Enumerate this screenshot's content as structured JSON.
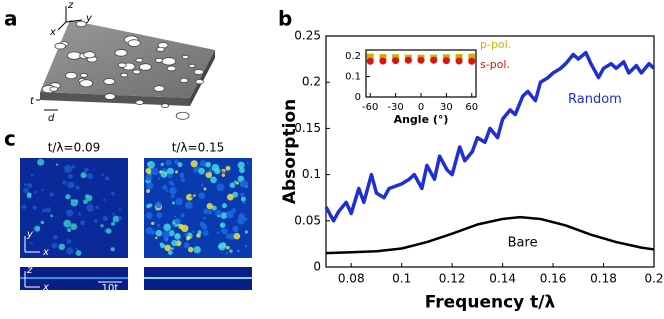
{
  "panels": {
    "a": "a",
    "b": "b",
    "c": "c"
  },
  "panel_a": {
    "axis_z": "z",
    "axis_y": "y",
    "axis_x": "x",
    "thickness": "t",
    "diameter": "d"
  },
  "panel_c": {
    "title_left": "t/λ=0.09",
    "title_right": "t/λ=0.15",
    "axis_y": "y",
    "axis_x": "x",
    "axis_z": "z",
    "axis_x2": "x",
    "scale": "10t"
  },
  "chart_data": [
    {
      "type": "line",
      "xlabel": "Frequency t/λ",
      "ylabel": "Absorption",
      "xlim": [
        0.07,
        0.2
      ],
      "ylim": [
        0,
        0.25
      ],
      "xticks": [
        0.08,
        0.1,
        0.12,
        0.14,
        0.16,
        0.18,
        0.2
      ],
      "yticks": [
        0,
        0.05,
        0.1,
        0.15,
        0.2,
        0.25
      ],
      "series": [
        {
          "name": "Random",
          "color": "#1f2fd6",
          "x": [
            0.07,
            0.073,
            0.075,
            0.078,
            0.08,
            0.083,
            0.085,
            0.088,
            0.09,
            0.093,
            0.095,
            0.1,
            0.103,
            0.105,
            0.108,
            0.11,
            0.113,
            0.115,
            0.118,
            0.12,
            0.123,
            0.125,
            0.128,
            0.13,
            0.133,
            0.135,
            0.138,
            0.14,
            0.143,
            0.145,
            0.148,
            0.15,
            0.153,
            0.155,
            0.158,
            0.16,
            0.163,
            0.165,
            0.168,
            0.17,
            0.173,
            0.175,
            0.178,
            0.18,
            0.183,
            0.185,
            0.188,
            0.19,
            0.193,
            0.195,
            0.198,
            0.2
          ],
          "values": [
            0.065,
            0.05,
            0.06,
            0.07,
            0.058,
            0.085,
            0.07,
            0.1,
            0.08,
            0.075,
            0.085,
            0.09,
            0.095,
            0.1,
            0.085,
            0.11,
            0.095,
            0.12,
            0.105,
            0.1,
            0.13,
            0.115,
            0.125,
            0.14,
            0.135,
            0.15,
            0.14,
            0.16,
            0.17,
            0.165,
            0.185,
            0.19,
            0.18,
            0.2,
            0.205,
            0.21,
            0.215,
            0.22,
            0.23,
            0.225,
            0.232,
            0.22,
            0.205,
            0.215,
            0.22,
            0.215,
            0.222,
            0.21,
            0.218,
            0.21,
            0.22,
            0.215
          ]
        },
        {
          "name": "Bare",
          "color": "#000000",
          "x": [
            0.07,
            0.08,
            0.09,
            0.1,
            0.11,
            0.12,
            0.13,
            0.14,
            0.147,
            0.155,
            0.165,
            0.175,
            0.185,
            0.195,
            0.2
          ],
          "values": [
            0.015,
            0.016,
            0.017,
            0.02,
            0.027,
            0.036,
            0.046,
            0.052,
            0.054,
            0.052,
            0.045,
            0.035,
            0.027,
            0.021,
            0.019
          ]
        }
      ]
    },
    {
      "type": "scatter",
      "xlabel": "Angle (°)",
      "xlim": [
        -65,
        65
      ],
      "ylim": [
        0,
        0.23
      ],
      "xticks": [
        -60,
        -30,
        0,
        30,
        60
      ],
      "yticks": [
        0,
        0.1,
        0.2
      ],
      "series": [
        {
          "name": "p-pol.",
          "color": "#c8b400",
          "x": [
            -60,
            -45,
            -30,
            -15,
            0,
            15,
            30,
            45,
            60
          ],
          "values": [
            0.195,
            0.193,
            0.192,
            0.19,
            0.19,
            0.19,
            0.192,
            0.193,
            0.195
          ]
        },
        {
          "name": "s-pol.",
          "color": "#e01010",
          "x": [
            -60,
            -45,
            -30,
            -15,
            0,
            15,
            30,
            45,
            60
          ],
          "values": [
            0.175,
            0.176,
            0.178,
            0.18,
            0.18,
            0.18,
            0.178,
            0.176,
            0.175
          ]
        }
      ]
    }
  ]
}
